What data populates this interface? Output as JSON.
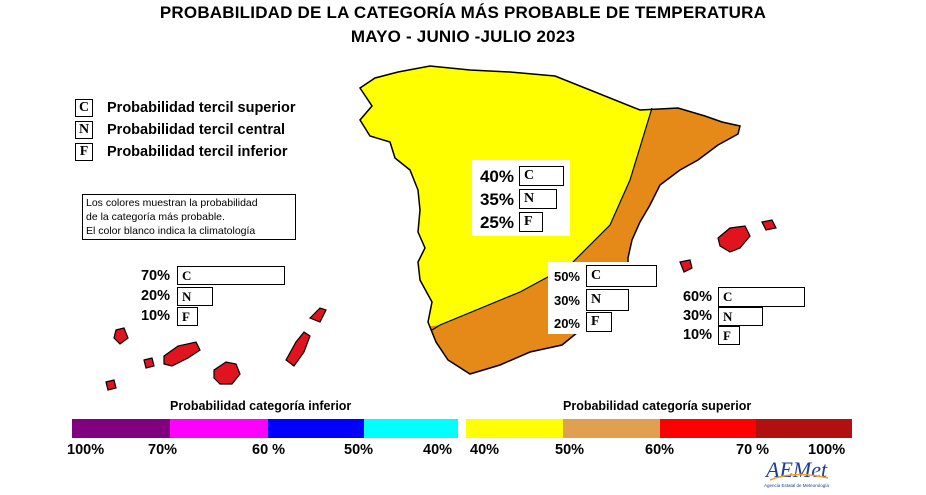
{
  "title": {
    "line1": "PROBABILIDAD DE LA CATEGORÍA MÁS PROBABLE DE  TEMPERATURA",
    "line2": "MAYO - JUNIO -JULIO 2023"
  },
  "legend": [
    {
      "code": "C",
      "label": "Probabilidad  tercil superior"
    },
    {
      "code": "N",
      "label": "Probabilidad  tercil central"
    },
    {
      "code": "F",
      "label": "Probabilidad  tercil inferior"
    }
  ],
  "note": {
    "line1": "Los colores muestran la probabilidad",
    "line2": "de la categoría más probable.",
    "line3": "El color blanco indica la climatología"
  },
  "regions": {
    "centro_norte": {
      "color": "#ffff00",
      "C": "40%",
      "N": "35%",
      "F": "25%",
      "C_value": 40,
      "N_value": 35,
      "F_value": 25
    },
    "sureste": {
      "color": "#e58a18",
      "C": "50%",
      "N": "30%",
      "F": "20%",
      "C_value": 50,
      "N_value": 30,
      "F_value": 20
    },
    "canarias": {
      "color": "#e0141e",
      "C": "70%",
      "N": "20%",
      "F": "10%",
      "C_value": 70,
      "N_value": 20,
      "F_value": 10
    },
    "baleares": {
      "color": "#e0141e",
      "C": "60%",
      "N": "30%",
      "F": "10%",
      "C_value": 60,
      "N_value": 30,
      "F_value": 10
    }
  },
  "scale": {
    "inferior_title": "Probabilidad categoría inferior",
    "superior_title": "Probabilidad categoría superior",
    "inferior_labels": [
      "100%",
      "70%",
      "60 %",
      "50%",
      "40%"
    ],
    "superior_labels": [
      "40%",
      "50%",
      "60%",
      "70 %",
      "100%"
    ],
    "inferior_colors": [
      "#800080",
      "#ff00ff",
      "#0000ff",
      "#00ffff"
    ],
    "superior_colors": [
      "#ffff00",
      "#e0a050",
      "#ff0000",
      "#b01010"
    ]
  },
  "logo": {
    "text": "AEMet",
    "subtitle": "Agencia Estatal de Meteorología"
  }
}
